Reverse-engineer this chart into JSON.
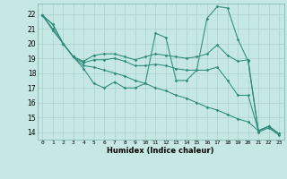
{
  "xlabel": "Humidex (Indice chaleur)",
  "background_color": "#c5e8e5",
  "grid_color": "#b0d4d0",
  "line_color": "#2e8b7a",
  "xlim": [
    -0.5,
    23.5
  ],
  "ylim": [
    13.5,
    22.7
  ],
  "xticks": [
    0,
    1,
    2,
    3,
    4,
    5,
    6,
    7,
    8,
    9,
    10,
    11,
    12,
    13,
    14,
    15,
    16,
    17,
    18,
    19,
    20,
    21,
    22,
    23
  ],
  "yticks": [
    14,
    15,
    16,
    17,
    18,
    19,
    20,
    21,
    22
  ],
  "series": [
    [
      21.9,
      21.3,
      20.0,
      19.1,
      18.3,
      17.3,
      17.0,
      17.4,
      17.0,
      17.0,
      17.3,
      20.7,
      20.4,
      17.5,
      17.5,
      18.2,
      21.7,
      22.5,
      22.4,
      20.3,
      18.8,
      14.0,
      14.3,
      13.8
    ],
    [
      21.9,
      21.3,
      20.0,
      19.1,
      18.8,
      19.2,
      19.3,
      19.3,
      19.1,
      18.9,
      19.1,
      19.3,
      19.2,
      19.1,
      19.0,
      19.1,
      19.3,
      19.9,
      19.2,
      18.8,
      18.9,
      14.1,
      14.4,
      13.9
    ],
    [
      21.9,
      21.0,
      20.0,
      19.1,
      18.7,
      18.9,
      18.9,
      19.0,
      18.8,
      18.5,
      18.5,
      18.6,
      18.5,
      18.3,
      18.2,
      18.2,
      18.2,
      18.4,
      17.5,
      16.5,
      16.5,
      14.1,
      14.4,
      13.9
    ],
    [
      21.9,
      20.9,
      20.0,
      19.1,
      18.5,
      18.4,
      18.2,
      18.0,
      17.8,
      17.5,
      17.3,
      17.0,
      16.8,
      16.5,
      16.3,
      16.0,
      15.7,
      15.5,
      15.2,
      14.9,
      14.7,
      14.1,
      14.4,
      13.9
    ]
  ]
}
